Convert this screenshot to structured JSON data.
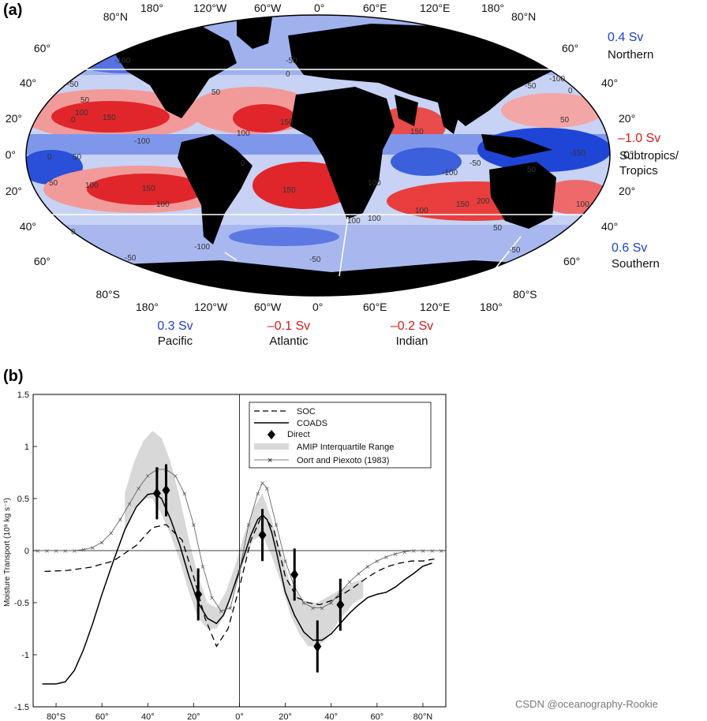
{
  "panel_a": {
    "letter": "(a)",
    "top_lon_labels": [
      "180°",
      "120°W",
      "60°W",
      "0°",
      "60°E",
      "120°E",
      "180°"
    ],
    "bottom_lon_labels": [
      "180°",
      "120°W",
      "60°W",
      "0°",
      "60°E",
      "120°E",
      "180°"
    ],
    "left_lat_labels": [
      "80°N",
      "60°",
      "40°",
      "20°",
      "0°",
      "20°",
      "40°",
      "60°",
      "80°S"
    ],
    "right_lat_labels": [
      "80°N",
      "60°",
      "40°",
      "20°",
      "0°",
      "20°",
      "40°",
      "60°",
      "80°S"
    ],
    "regions": [
      {
        "value": "0.4 Sv",
        "name": "Northern",
        "color": "#1d3fcf"
      },
      {
        "value": "–1.0 Sv",
        "name": "Subtropics/",
        "name2": "Tropics",
        "color": "#d21b1b"
      },
      {
        "value": "0.6 Sv",
        "name": "Southern",
        "color": "#1d3fcf"
      }
    ],
    "basins": [
      {
        "value": "0.3 Sv",
        "name": "Pacific",
        "color": "#1d3fcf"
      },
      {
        "value": "–0.1 Sv",
        "name": "Atlantic",
        "color": "#d21b1b"
      },
      {
        "value": "–0.2 Sv",
        "name": "Indian",
        "color": "#d21b1b"
      }
    ],
    "contour_labels": [
      "-100",
      "-50",
      "0",
      "50",
      "100",
      "150",
      "-50",
      "0",
      "50",
      "100",
      "150",
      "-100",
      "0",
      "50",
      "150",
      "150",
      "100",
      "-50",
      "-100",
      "150",
      "100",
      "150",
      "200",
      "100",
      "-50",
      "100",
      "-100",
      "-50",
      "0",
      "50",
      "100",
      "-50",
      "0",
      "50",
      "100",
      "-100",
      "-50",
      "0",
      "50",
      "100",
      "-150",
      "50"
    ],
    "colors": {
      "positive": "#e0141b",
      "negative": "#1a3fd6",
      "land": "#000000"
    }
  },
  "panel_b": {
    "letter": "(b)",
    "watermark": "CSDN @oceanography-Rookie"
  },
  "chart_data": {
    "type": "line",
    "ylabel": "Moisture Transport (10⁹ kg s⁻¹)",
    "xlabel": "",
    "xlim": [
      -90,
      90
    ],
    "ylim": [
      -1.5,
      1.5
    ],
    "x_ticks": [
      -80,
      -60,
      -40,
      -20,
      0,
      20,
      40,
      60,
      80
    ],
    "x_tick_labels": [
      "80°S",
      "60°",
      "40°",
      "20°",
      "0°",
      "20°",
      "40°",
      "60°",
      "80°N"
    ],
    "y_ticks": [
      -1.5,
      -1,
      -0.5,
      0,
      0.5,
      1,
      1.5
    ],
    "y_tick_labels": [
      "-1.5",
      "-1",
      "-0.5",
      "0",
      "0.5",
      "1",
      "1.5"
    ],
    "legend_position": "top-right",
    "legend": [
      "SOC",
      "COADS",
      "Direct",
      "AMIP Interquartile Range",
      "Oort and Piexoto (1983)"
    ],
    "series": [
      {
        "name": "SOC",
        "style": "dashed",
        "x": [
          -85,
          -75,
          -65,
          -55,
          -45,
          -38,
          -32,
          -25,
          -20,
          -15,
          -10,
          -5,
          0,
          5,
          10,
          15,
          20,
          25,
          30,
          35,
          40,
          45,
          50,
          55,
          60,
          65,
          70,
          75,
          80,
          85
        ],
        "y": [
          -0.2,
          -0.19,
          -0.16,
          -0.1,
          0.05,
          0.22,
          0.25,
          0.1,
          -0.25,
          -0.65,
          -0.92,
          -0.75,
          -0.35,
          0.1,
          0.35,
          0.2,
          -0.25,
          -0.45,
          -0.5,
          -0.52,
          -0.48,
          -0.42,
          -0.35,
          -0.27,
          -0.2,
          -0.15,
          -0.12,
          -0.1,
          -0.1,
          -0.08
        ]
      },
      {
        "name": "COADS",
        "style": "solid",
        "x": [
          -86,
          -80,
          -76,
          -72,
          -68,
          -64,
          -60,
          -55,
          -50,
          -45,
          -40,
          -37,
          -34,
          -30,
          -26,
          -22,
          -18,
          -14,
          -10,
          -7,
          -4,
          -1,
          2,
          5,
          8,
          10,
          12,
          14,
          16,
          18,
          20,
          24,
          28,
          32,
          36,
          40,
          44,
          48,
          52,
          56,
          60,
          64,
          68,
          72,
          76,
          80,
          84
        ],
        "y": [
          -1.28,
          -1.28,
          -1.26,
          -1.15,
          -0.95,
          -0.7,
          -0.42,
          -0.1,
          0.2,
          0.42,
          0.54,
          0.55,
          0.5,
          0.3,
          0.05,
          -0.25,
          -0.5,
          -0.65,
          -0.7,
          -0.62,
          -0.45,
          -0.25,
          -0.05,
          0.15,
          0.3,
          0.34,
          0.3,
          0.18,
          0.0,
          -0.2,
          -0.4,
          -0.62,
          -0.78,
          -0.86,
          -0.86,
          -0.8,
          -0.7,
          -0.6,
          -0.52,
          -0.45,
          -0.42,
          -0.4,
          -0.35,
          -0.28,
          -0.22,
          -0.15,
          -0.12
        ]
      },
      {
        "name": "Oort and Piexoto (1983)",
        "style": "line-x",
        "x": [
          -88,
          -84,
          -80,
          -76,
          -72,
          -68,
          -64,
          -60,
          -56,
          -52,
          -48,
          -44,
          -40,
          -36,
          -32,
          -28,
          -24,
          -20,
          -16,
          -12,
          -8,
          -4,
          0,
          4,
          8,
          10,
          12,
          16,
          20,
          24,
          28,
          32,
          36,
          40,
          44,
          48,
          52,
          56,
          60,
          64,
          68,
          72,
          76,
          80,
          84,
          88
        ],
        "y": [
          0.0,
          0.0,
          0.0,
          0.0,
          0.0,
          0.01,
          0.03,
          0.08,
          0.17,
          0.3,
          0.45,
          0.6,
          0.72,
          0.78,
          0.78,
          0.72,
          0.55,
          0.25,
          -0.15,
          -0.45,
          -0.58,
          -0.55,
          -0.2,
          0.25,
          0.55,
          0.65,
          0.6,
          0.25,
          -0.1,
          -0.35,
          -0.5,
          -0.55,
          -0.55,
          -0.5,
          -0.4,
          -0.3,
          -0.22,
          -0.15,
          -0.1,
          -0.06,
          -0.03,
          -0.01,
          0.0,
          0.0,
          0.0,
          0.0
        ]
      }
    ],
    "amip_range": {
      "name": "AMIP Interquartile Range",
      "x": [
        -50,
        -46,
        -42,
        -38,
        -34,
        -30,
        -26,
        -22,
        -18,
        -14,
        -10,
        -6,
        -2,
        2,
        6,
        10,
        14,
        18,
        22,
        26,
        30,
        34,
        38,
        42,
        46,
        50,
        54
      ],
      "upper": [
        0.55,
        0.85,
        1.05,
        1.15,
        1.08,
        0.85,
        0.5,
        0.1,
        -0.25,
        -0.5,
        -0.55,
        -0.4,
        -0.15,
        0.15,
        0.4,
        0.55,
        0.3,
        0.0,
        -0.3,
        -0.45,
        -0.5,
        -0.5,
        -0.45,
        -0.4,
        -0.35,
        -0.3,
        -0.28
      ],
      "lower": [
        0.2,
        0.4,
        0.5,
        0.5,
        0.35,
        0.15,
        -0.1,
        -0.4,
        -0.65,
        -0.75,
        -0.75,
        -0.6,
        -0.35,
        -0.1,
        0.1,
        0.15,
        -0.05,
        -0.3,
        -0.6,
        -0.8,
        -0.92,
        -0.92,
        -0.85,
        -0.72,
        -0.6,
        -0.5,
        -0.45
      ]
    },
    "direct": {
      "name": "Direct",
      "x": [
        -36,
        -32,
        -18,
        10,
        24,
        34,
        44
      ],
      "y": [
        0.55,
        0.58,
        -0.42,
        0.15,
        -0.23,
        -0.92,
        -0.52
      ],
      "err": [
        0.25,
        0.25,
        0.25,
        0.25,
        0.25,
        0.25,
        0.25
      ]
    }
  }
}
